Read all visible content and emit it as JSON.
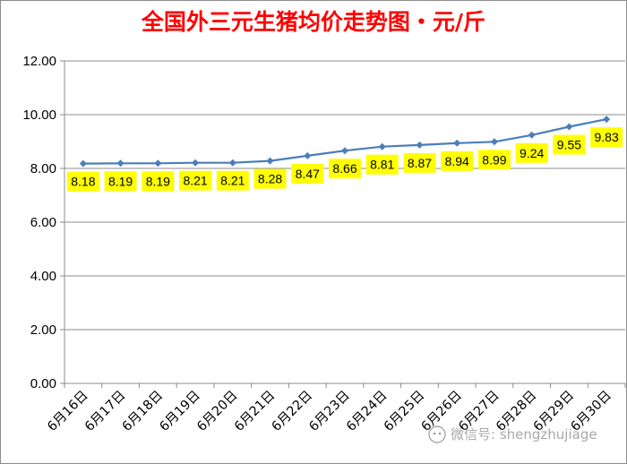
{
  "chart_data": {
    "type": "line",
    "title": "全国外三元生猪均价走势图・元/斤",
    "categories": [
      "6月16日",
      "6月17日",
      "6月18日",
      "6月19日",
      "6月20日",
      "6月21日",
      "6月22日",
      "6月23日",
      "6月24日",
      "6月25日",
      "6月26日",
      "6月27日",
      "6月28日",
      "6月29日",
      "6月30日"
    ],
    "values": [
      8.18,
      8.19,
      8.19,
      8.21,
      8.21,
      8.28,
      8.47,
      8.66,
      8.81,
      8.87,
      8.94,
      8.99,
      9.24,
      9.55,
      9.83
    ],
    "data_labels": [
      "8.18",
      "8.19",
      "8.19",
      "8.21",
      "8.21",
      "8.28",
      "8.47",
      "8.66",
      "8.81",
      "8.87",
      "8.94",
      "8.99",
      "9.24",
      "9.55",
      "9.83"
    ],
    "yticks": [
      "0.00",
      "2.00",
      "4.00",
      "6.00",
      "8.00",
      "10.00",
      "12.00"
    ],
    "ylim": [
      0,
      12
    ],
    "xlabel": "",
    "ylabel": "",
    "grid": true,
    "legend": "none",
    "colors": {
      "line": "#4a7ebb",
      "marker": "#4a7ebb",
      "label_bg": "#ffff00",
      "title": "#ff0000",
      "grid": "#8c8c8c"
    }
  },
  "watermark": {
    "icon": "wechat-icon",
    "text": "微信号: shengzhujiage"
  }
}
